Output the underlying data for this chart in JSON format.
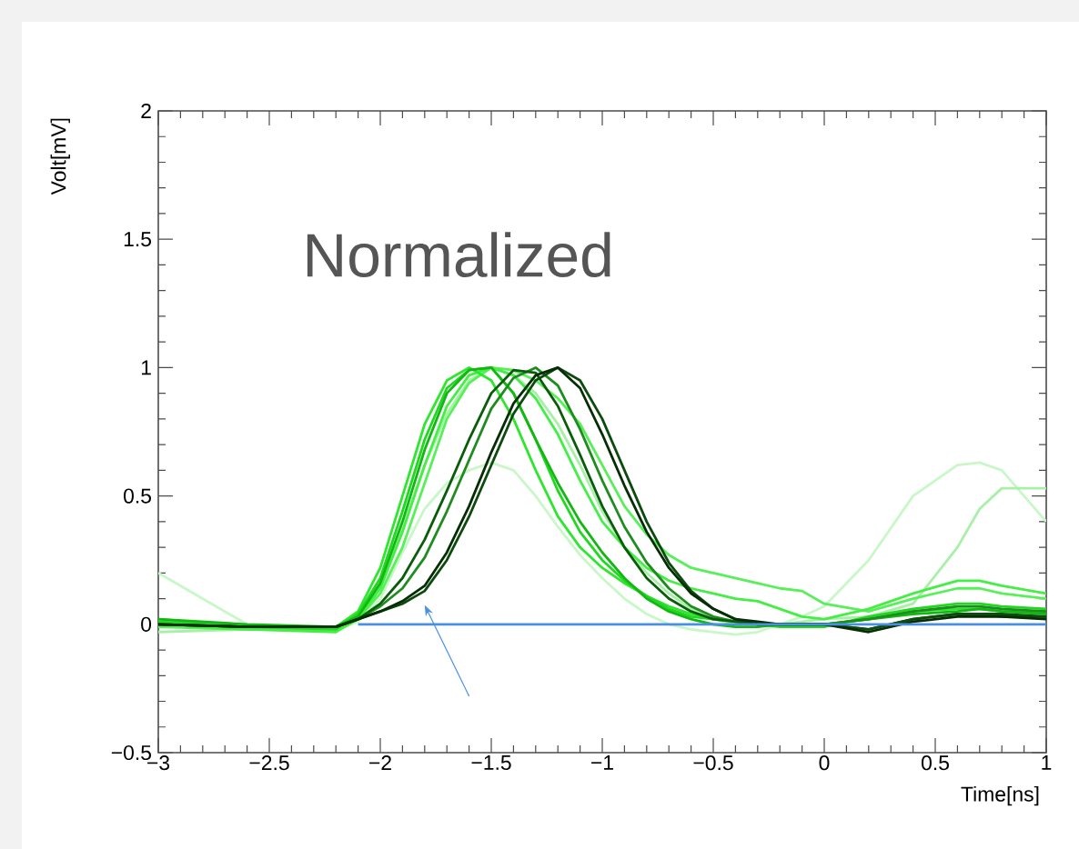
{
  "chart_data": {
    "type": "line",
    "xlabel": "Time[ns]",
    "ylabel": "Volt[mV]",
    "annotations": [
      "Normalized"
    ],
    "xlim": [
      -3,
      1
    ],
    "ylim": [
      -0.5,
      2
    ],
    "xticks": [
      {
        "value": -3,
        "label": "−3"
      },
      {
        "value": -2.5,
        "label": "−2.5"
      },
      {
        "value": -2,
        "label": "−2"
      },
      {
        "value": -1.5,
        "label": "−1.5"
      },
      {
        "value": -1,
        "label": "−1"
      },
      {
        "value": -0.5,
        "label": "−0.5"
      },
      0,
      0.5,
      1
    ],
    "yticks": [
      {
        "value": -0.5,
        "label": "−0.5"
      },
      0,
      0.5,
      1,
      1.5,
      2
    ],
    "marker": "none",
    "line_style": "solid",
    "x": [
      -3,
      -2.6,
      -2.2,
      -2.1,
      -2.0,
      -1.9,
      -1.8,
      -1.7,
      -1.6,
      -1.5,
      -1.4,
      -1.3,
      -1.2,
      -1.1,
      -1.0,
      -0.9,
      -0.8,
      -0.7,
      -0.6,
      -0.5,
      -0.4,
      -0.3,
      -0.2,
      -0.1,
      0,
      0.2,
      0.4,
      0.6,
      0.7,
      0.8,
      1.0
    ],
    "series": [
      {
        "color": "#c8f7c8",
        "values": [
          0.2,
          0.0,
          -0.02,
          0.01,
          0.1,
          0.28,
          0.45,
          0.55,
          0.6,
          0.63,
          0.6,
          0.5,
          0.38,
          0.27,
          0.18,
          0.1,
          0.04,
          0,
          -0.02,
          -0.03,
          -0.04,
          -0.03,
          0,
          0.03,
          0.07,
          0.25,
          0.5,
          0.62,
          0.63,
          0.6,
          0.4
        ]
      },
      {
        "color": "#a8f0a8",
        "values": [
          -0.03,
          -0.02,
          -0.02,
          0.03,
          0.15,
          0.38,
          0.62,
          0.82,
          0.95,
          1.0,
          0.97,
          0.9,
          0.78,
          0.62,
          0.44,
          0.3,
          0.2,
          0.12,
          0.06,
          0.02,
          0,
          0,
          0,
          0.01,
          0.02,
          0.03,
          0.08,
          0.3,
          0.45,
          0.53,
          0.53
        ]
      },
      {
        "color": "#58f058",
        "values": [
          -0.01,
          -0.02,
          -0.02,
          0.02,
          0.12,
          0.3,
          0.55,
          0.8,
          0.94,
          1.0,
          0.99,
          0.95,
          0.88,
          0.78,
          0.62,
          0.46,
          0.35,
          0.27,
          0.22,
          0.2,
          0.18,
          0.16,
          0.14,
          0.13,
          0.08,
          0.05,
          0.1,
          0.14,
          0.14,
          0.12,
          0.1
        ]
      },
      {
        "color": "#44ee44",
        "values": [
          0.0,
          -0.02,
          -0.03,
          0.02,
          0.14,
          0.36,
          0.62,
          0.85,
          0.97,
          1.0,
          0.97,
          0.88,
          0.74,
          0.56,
          0.4,
          0.3,
          0.22,
          0.17,
          0.14,
          0.12,
          0.1,
          0.09,
          0.06,
          0.03,
          0.02,
          0.06,
          0.12,
          0.17,
          0.17,
          0.15,
          0.12
        ]
      },
      {
        "color": "#2ee62e",
        "values": [
          0.02,
          -0.01,
          -0.01,
          0.05,
          0.22,
          0.5,
          0.78,
          0.95,
          1.0,
          0.95,
          0.8,
          0.6,
          0.42,
          0.3,
          0.22,
          0.16,
          0.11,
          0.07,
          0.04,
          0.02,
          0.01,
          0,
          0,
          0,
          0,
          0.02,
          0.05,
          0.06,
          0.06,
          0.05,
          0.05
        ]
      },
      {
        "color": "#1fd81f",
        "values": [
          0.01,
          -0.01,
          -0.02,
          0.04,
          0.18,
          0.44,
          0.72,
          0.92,
          0.99,
          1.0,
          0.9,
          0.72,
          0.52,
          0.36,
          0.25,
          0.17,
          0.11,
          0.06,
          0.03,
          0.02,
          0.01,
          0,
          -0.01,
          -0.01,
          -0.01,
          0.03,
          0.06,
          0.08,
          0.08,
          0.07,
          0.06
        ]
      },
      {
        "color": "#12b812",
        "values": [
          0.02,
          0,
          -0.01,
          0.03,
          0.16,
          0.4,
          0.68,
          0.9,
          0.99,
          1.0,
          0.9,
          0.72,
          0.55,
          0.4,
          0.28,
          0.18,
          0.1,
          0.05,
          0.02,
          0,
          -0.01,
          -0.01,
          0,
          0,
          0,
          0.02,
          0.04,
          0.05,
          0.06,
          0.05,
          0.04
        ]
      },
      {
        "color": "#1e8c1e",
        "values": [
          0,
          -0.01,
          -0.01,
          0.02,
          0.07,
          0.14,
          0.26,
          0.44,
          0.64,
          0.84,
          0.96,
          1.0,
          0.93,
          0.76,
          0.56,
          0.38,
          0.24,
          0.14,
          0.07,
          0.03,
          0.01,
          0,
          0,
          0,
          0,
          0.02,
          0.05,
          0.07,
          0.07,
          0.06,
          0.05
        ]
      },
      {
        "color": "#0a5c0a",
        "values": [
          0.0,
          -0.01,
          -0.01,
          0.02,
          0.08,
          0.18,
          0.33,
          0.52,
          0.72,
          0.9,
          0.99,
          0.98,
          0.85,
          0.66,
          0.46,
          0.3,
          0.18,
          0.1,
          0.05,
          0.02,
          0.01,
          0,
          0,
          0,
          0,
          -0.02,
          0.02,
          0.04,
          0.04,
          0.03,
          0.03
        ]
      },
      {
        "color": "#0d4a0d",
        "values": [
          0.0,
          -0.01,
          -0.01,
          0.02,
          0.05,
          0.08,
          0.13,
          0.25,
          0.42,
          0.62,
          0.82,
          0.95,
          1.0,
          0.95,
          0.8,
          0.6,
          0.4,
          0.24,
          0.13,
          0.06,
          0.02,
          0,
          0,
          0,
          0,
          -0.02,
          0.02,
          0.04,
          0.04,
          0.04,
          0.03
        ]
      },
      {
        "color": "#052e05",
        "values": [
          0.0,
          -0.01,
          -0.01,
          0.02,
          0.05,
          0.09,
          0.15,
          0.28,
          0.46,
          0.67,
          0.86,
          0.97,
          1.0,
          0.92,
          0.74,
          0.54,
          0.36,
          0.22,
          0.12,
          0.06,
          0.02,
          0.01,
          0,
          0,
          0,
          -0.03,
          0.01,
          0.03,
          0.03,
          0.03,
          0.02
        ]
      },
      {
        "type": "line",
        "color": "#4a90e2",
        "x": [
          -2.1,
          1
        ],
        "values": [
          0,
          0
        ]
      }
    ]
  }
}
